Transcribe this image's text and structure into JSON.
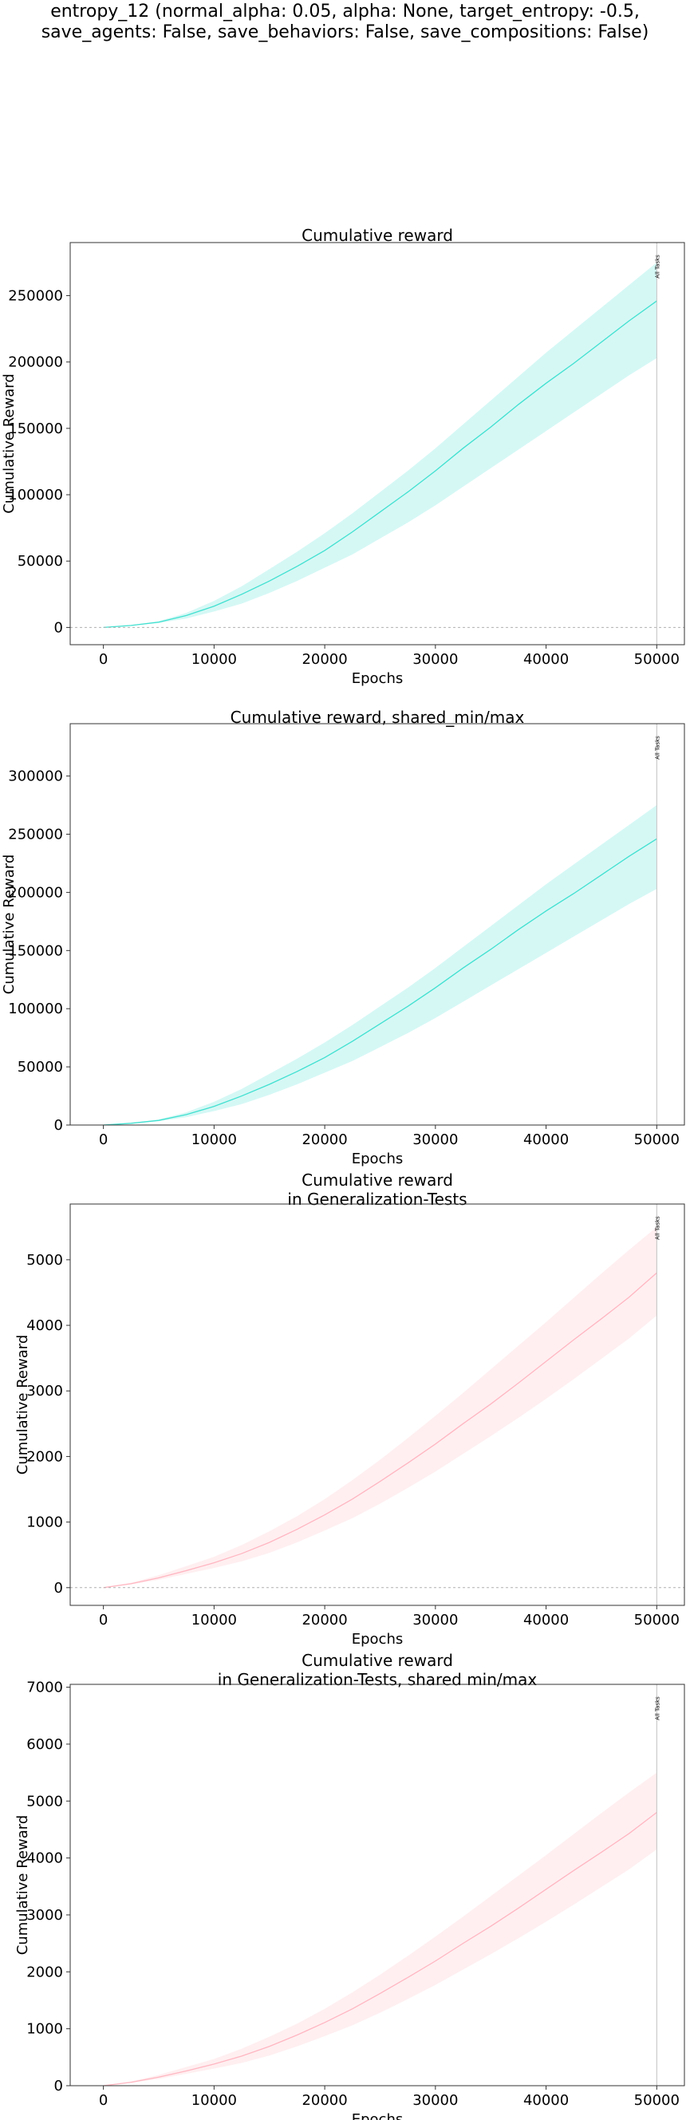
{
  "figure": {
    "suptitle_lines": [
      "entropy_12 (normal_alpha: 0.05, alpha: None, target_entropy: -0.5,",
      "save_agents: False, save_behaviors: False, save_compositions: False)"
    ]
  },
  "chart_data": [
    {
      "type": "line",
      "title_lines": [
        "Cumulative reward"
      ],
      "xlabel": "Epochs",
      "ylabel": "Cumulative Reward",
      "xlim": [
        -3000,
        52500
      ],
      "ylim": [
        -13000,
        290000
      ],
      "xticks": [
        0,
        10000,
        20000,
        30000,
        40000,
        50000
      ],
      "yticks": [
        0,
        50000,
        100000,
        150000,
        200000,
        250000
      ],
      "zero_line": true,
      "vline": {
        "x": 50000,
        "label": "All Tasks"
      },
      "color": "#40e0d0",
      "series": [
        {
          "x": [
            0,
            2500,
            5000,
            7500,
            10000,
            12500,
            15000,
            17500,
            20000,
            22500,
            25000,
            27500,
            30000,
            32500,
            35000,
            37500,
            40000,
            42500,
            45000,
            47500,
            50000
          ],
          "y": [
            0,
            1500,
            4000,
            9000,
            16000,
            25000,
            35000,
            46000,
            58000,
            72000,
            87000,
            102000,
            118000,
            135000,
            151000,
            168000,
            184000,
            199000,
            215000,
            231000,
            246000
          ],
          "lower": [
            0,
            1300,
            3300,
            6800,
            12000,
            18000,
            26000,
            35000,
            45000,
            55000,
            67000,
            79000,
            92000,
            106000,
            120000,
            134000,
            148000,
            162000,
            176000,
            190000,
            203000
          ],
          "upper": [
            0,
            1700,
            4700,
            11000,
            20000,
            31000,
            44000,
            57000,
            71000,
            86000,
            102000,
            118000,
            135000,
            153000,
            171000,
            189000,
            207000,
            224000,
            241000,
            258000,
            275000
          ]
        }
      ]
    },
    {
      "type": "line",
      "title_lines": [
        "Cumulative reward, shared_min/max"
      ],
      "xlabel": "Epochs",
      "ylabel": "Cumulative Reward",
      "xlim": [
        -3000,
        52500
      ],
      "ylim": [
        0,
        345000
      ],
      "xticks": [
        0,
        10000,
        20000,
        30000,
        40000,
        50000
      ],
      "yticks": [
        0,
        50000,
        100000,
        150000,
        200000,
        250000,
        300000
      ],
      "zero_line": false,
      "vline": {
        "x": 50000,
        "label": "All Tasks"
      },
      "color": "#40e0d0",
      "series": [
        {
          "x": [
            0,
            2500,
            5000,
            7500,
            10000,
            12500,
            15000,
            17500,
            20000,
            22500,
            25000,
            27500,
            30000,
            32500,
            35000,
            37500,
            40000,
            42500,
            45000,
            47500,
            50000
          ],
          "y": [
            0,
            1500,
            4000,
            9000,
            16000,
            25000,
            35000,
            46000,
            58000,
            72000,
            87000,
            102000,
            118000,
            135000,
            151000,
            168000,
            184000,
            199000,
            215000,
            231000,
            246000
          ],
          "lower": [
            0,
            1300,
            3300,
            6800,
            12000,
            18000,
            26000,
            35000,
            45000,
            55000,
            67000,
            79000,
            92000,
            106000,
            120000,
            134000,
            148000,
            162000,
            176000,
            190000,
            203000
          ],
          "upper": [
            0,
            1700,
            4700,
            11000,
            20000,
            31000,
            44000,
            57000,
            71000,
            86000,
            102000,
            118000,
            135000,
            153000,
            171000,
            189000,
            207000,
            224000,
            241000,
            258000,
            275000
          ]
        }
      ]
    },
    {
      "type": "line",
      "title_lines": [
        "Cumulative reward",
        "in Generalization-Tests"
      ],
      "xlabel": "Epochs",
      "ylabel": "Cumulative Reward",
      "xlim": [
        -3000,
        52500
      ],
      "ylim": [
        -270,
        5850
      ],
      "xticks": [
        0,
        10000,
        20000,
        30000,
        40000,
        50000
      ],
      "yticks": [
        0,
        1000,
        2000,
        3000,
        4000,
        5000
      ],
      "zero_line": true,
      "vline": {
        "x": 50000,
        "label": "All Tasks"
      },
      "color": "#ffb6c1",
      "series": [
        {
          "x": [
            0,
            2500,
            5000,
            7500,
            10000,
            12500,
            15000,
            17500,
            20000,
            22500,
            25000,
            27500,
            30000,
            32500,
            35000,
            37500,
            40000,
            42500,
            45000,
            47500,
            50000
          ],
          "y": [
            0,
            60,
            150,
            260,
            380,
            520,
            690,
            890,
            1110,
            1350,
            1620,
            1900,
            2190,
            2500,
            2800,
            3120,
            3450,
            3780,
            4100,
            4430,
            4800
          ],
          "lower": [
            0,
            50,
            120,
            210,
            300,
            400,
            530,
            690,
            870,
            1060,
            1280,
            1520,
            1770,
            2040,
            2310,
            2590,
            2880,
            3180,
            3490,
            3800,
            4150
          ],
          "upper": [
            0,
            75,
            190,
            330,
            470,
            650,
            860,
            1090,
            1350,
            1640,
            1950,
            2280,
            2620,
            2970,
            3330,
            3690,
            4050,
            4420,
            4790,
            5150,
            5500
          ]
        }
      ]
    },
    {
      "type": "line",
      "title_lines": [
        "Cumulative reward",
        "in Generalization-Tests, shared min/max"
      ],
      "xlabel": "Epochs",
      "ylabel": "Cumulative Reward",
      "xlim": [
        -3000,
        52500
      ],
      "ylim": [
        0,
        7050
      ],
      "xticks": [
        0,
        10000,
        20000,
        30000,
        40000,
        50000
      ],
      "yticks": [
        0,
        1000,
        2000,
        3000,
        4000,
        5000,
        6000,
        7000
      ],
      "zero_line": false,
      "vline": {
        "x": 50000,
        "label": "All Tasks"
      },
      "color": "#ffb6c1",
      "series": [
        {
          "x": [
            0,
            2500,
            5000,
            7500,
            10000,
            12500,
            15000,
            17500,
            20000,
            22500,
            25000,
            27500,
            30000,
            32500,
            35000,
            37500,
            40000,
            42500,
            45000,
            47500,
            50000
          ],
          "y": [
            0,
            60,
            150,
            260,
            380,
            520,
            690,
            890,
            1110,
            1350,
            1620,
            1900,
            2190,
            2500,
            2800,
            3120,
            3450,
            3780,
            4100,
            4430,
            4800
          ],
          "lower": [
            0,
            50,
            120,
            210,
            300,
            400,
            530,
            690,
            870,
            1060,
            1280,
            1520,
            1770,
            2040,
            2310,
            2590,
            2880,
            3180,
            3490,
            3800,
            4150
          ],
          "upper": [
            0,
            75,
            190,
            330,
            470,
            650,
            860,
            1090,
            1350,
            1640,
            1950,
            2280,
            2620,
            2970,
            3330,
            3690,
            4050,
            4420,
            4790,
            5150,
            5500
          ]
        }
      ]
    }
  ]
}
